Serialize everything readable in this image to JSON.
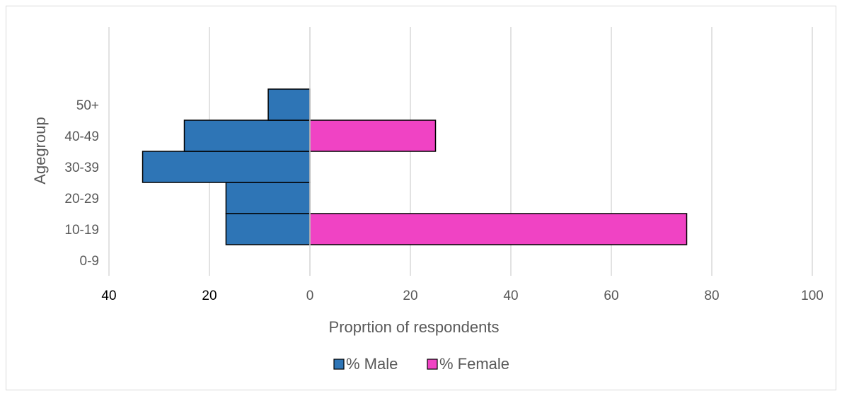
{
  "chart_data": {
    "type": "bar",
    "orientation": "horizontal",
    "subtype": "population-pyramid",
    "title": "",
    "xlabel": "Proprtion of respondents",
    "ylabel": "Agegroup",
    "categories": [
      "0-9",
      "10-19",
      "20-29",
      "30-39",
      "40-49",
      "50+"
    ],
    "series": [
      {
        "name": "% Male",
        "values": [
          0,
          16.7,
          16.7,
          33.3,
          25,
          8.3
        ],
        "color": "#2e75b6",
        "side": "left"
      },
      {
        "name": "% Female",
        "values": [
          0,
          75,
          0,
          0,
          25,
          0
        ],
        "color": "#f043c4",
        "side": "right"
      }
    ],
    "xlim": [
      -40,
      100
    ],
    "x_ticks": [
      {
        "value": -40,
        "label": "40"
      },
      {
        "value": -20,
        "label": "20"
      },
      {
        "value": 0,
        "label": "0"
      },
      {
        "value": 20,
        "label": "20"
      },
      {
        "value": 40,
        "label": "40"
      },
      {
        "value": 60,
        "label": "60"
      },
      {
        "value": 80,
        "label": "80"
      },
      {
        "value": 100,
        "label": "100"
      }
    ],
    "grid": "vertical",
    "legend_position": "bottom"
  }
}
